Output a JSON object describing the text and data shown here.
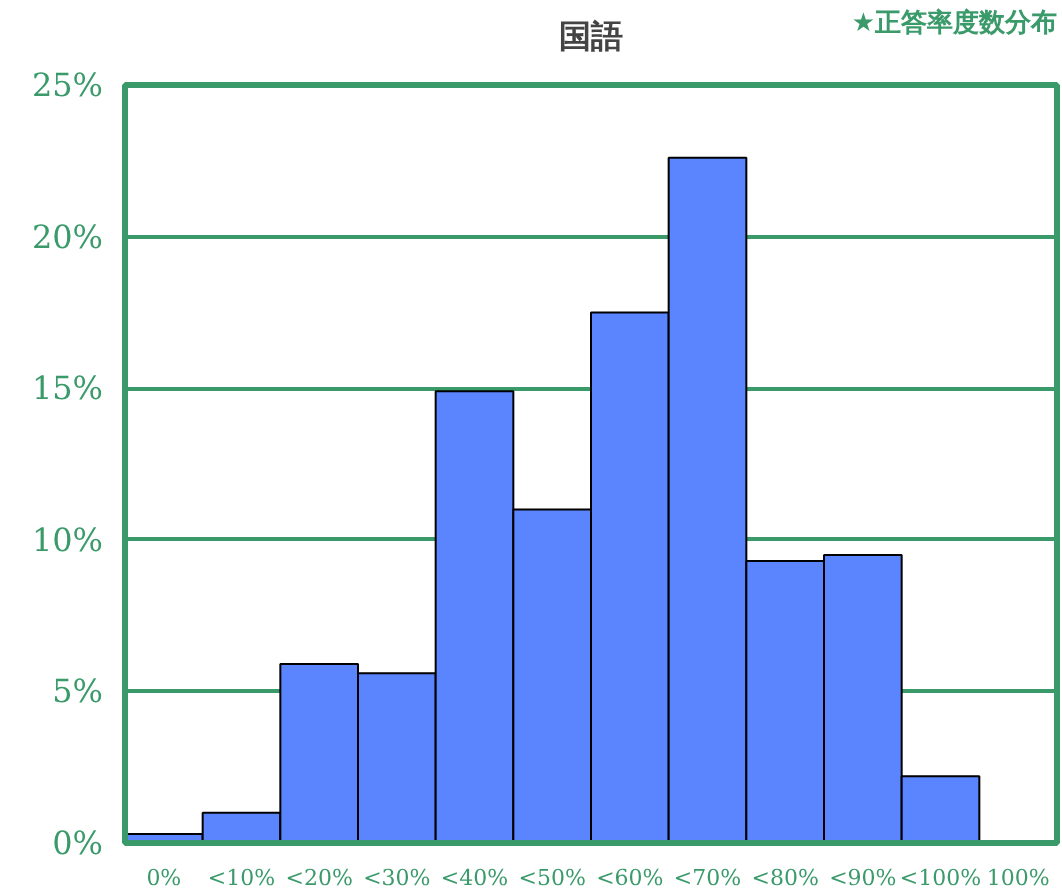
{
  "chart_data": {
    "type": "bar",
    "title": "国語",
    "annotations": [
      "★正答率度数分布"
    ],
    "categories": [
      "0%",
      "<10%",
      "<20%",
      "<30%",
      "<40%",
      "<50%",
      "<60%",
      "<70%",
      "<80%",
      "<90%",
      "<100%",
      "100%"
    ],
    "values": [
      0.3,
      1.0,
      5.9,
      5.6,
      14.9,
      11.0,
      17.5,
      22.6,
      9.3,
      9.5,
      2.2,
      0
    ],
    "color": "#5b84ff",
    "ylim": [
      0,
      25
    ],
    "yticks": [
      {
        "value": 0,
        "label": "0%"
      },
      {
        "value": 5,
        "label": "5%"
      },
      {
        "value": 10,
        "label": "10%"
      },
      {
        "value": 15,
        "label": "15%"
      },
      {
        "value": 20,
        "label": "20%"
      },
      {
        "value": 25,
        "label": "25%"
      }
    ],
    "grid": "y"
  }
}
